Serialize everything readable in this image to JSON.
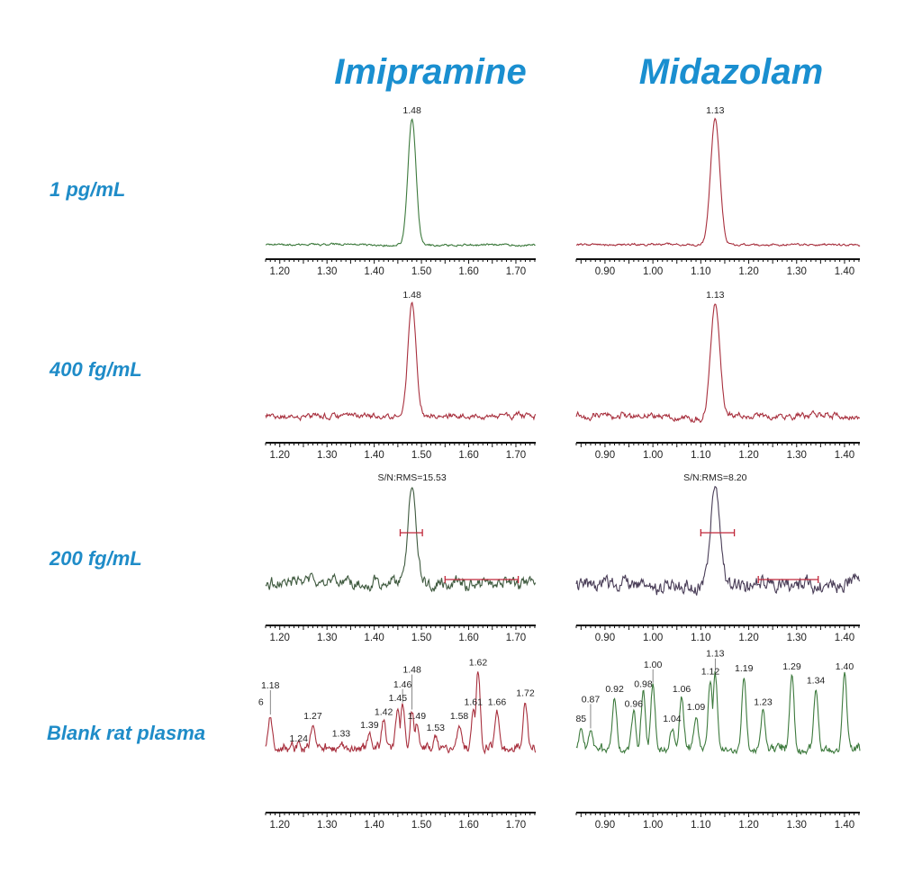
{
  "chart_data": {
    "type": "line",
    "title": "",
    "columns": [
      "Imipramine",
      "Midazolam"
    ],
    "rows": [
      "1 pg/mL",
      "400 fg/mL",
      "200 fg/mL",
      "Blank rat plasma"
    ],
    "xlabel": "",
    "ylabel": "",
    "panels": [
      {
        "compound": "Imipramine",
        "row": "1 pg/mL",
        "xlim": [
          1.17,
          1.742
        ],
        "ticks": [
          "1.20",
          "1.30",
          "1.40",
          "1.50",
          "1.60",
          "1.70"
        ],
        "color": "#3d7a3d",
        "peak": {
          "rt": 1.48,
          "label": "1.48",
          "intensity": 100
        },
        "noise": 2
      },
      {
        "compound": "Midazolam",
        "row": "1 pg/mL",
        "xlim": [
          0.84,
          1.432
        ],
        "ticks": [
          "0.90",
          "1.00",
          "1.10",
          "1.20",
          "1.30",
          "1.40"
        ],
        "color": "#a8303e",
        "peak": {
          "rt": 1.13,
          "label": "1.13",
          "intensity": 100
        },
        "noise": 2
      },
      {
        "compound": "Imipramine",
        "row": "400 fg/mL",
        "xlim": [
          1.17,
          1.742
        ],
        "ticks": [
          "1.20",
          "1.30",
          "1.40",
          "1.50",
          "1.60",
          "1.70"
        ],
        "color": "#a8303e",
        "peak": {
          "rt": 1.48,
          "label": "1.48",
          "intensity": 100
        },
        "noise": 5
      },
      {
        "compound": "Midazolam",
        "row": "400 fg/mL",
        "xlim": [
          0.84,
          1.432
        ],
        "ticks": [
          "0.90",
          "1.00",
          "1.10",
          "1.20",
          "1.30",
          "1.40"
        ],
        "color": "#a8303e",
        "peak": {
          "rt": 1.13,
          "label": "1.13",
          "intensity": 100
        },
        "noise": 6
      },
      {
        "compound": "Imipramine",
        "row": "200 fg/mL",
        "xlim": [
          1.17,
          1.742
        ],
        "ticks": [
          "1.20",
          "1.30",
          "1.40",
          "1.50",
          "1.60",
          "1.70"
        ],
        "color": "#3f5a3f",
        "peak": {
          "rt": 1.48,
          "label": "S/N:RMS=15.53",
          "intensity": 100
        },
        "noise": 11,
        "sn": {
          "value": 15.53,
          "fwhm": [
            1.455,
            1.502
          ],
          "noise_range": [
            1.55,
            1.705
          ]
        }
      },
      {
        "compound": "Midazolam",
        "row": "200 fg/mL",
        "xlim": [
          0.84,
          1.432
        ],
        "ticks": [
          "0.90",
          "1.00",
          "1.10",
          "1.20",
          "1.30",
          "1.40"
        ],
        "color": "#4a3e58",
        "peak": {
          "rt": 1.13,
          "label": "S/N:RMS=8.20",
          "intensity": 100
        },
        "noise": 14,
        "sn": {
          "value": 8.2,
          "fwhm": [
            1.1,
            1.17
          ],
          "noise_range": [
            1.22,
            1.345
          ]
        }
      },
      {
        "compound": "Imipramine",
        "row": "Blank rat plasma",
        "xlim": [
          1.17,
          1.742
        ],
        "ticks": [
          "1.20",
          "1.30",
          "1.40",
          "1.50",
          "1.60",
          "1.70"
        ],
        "color": "#a8303e",
        "blank": [
          {
            "rt": 1.16,
            "label": "6",
            "intensity": 55
          },
          {
            "rt": 1.18,
            "label": "1.18",
            "intensity": 50
          },
          {
            "rt": 1.24,
            "label": "1.24",
            "intensity": 18
          },
          {
            "rt": 1.27,
            "label": "1.27",
            "intensity": 41
          },
          {
            "rt": 1.33,
            "label": "1.33",
            "intensity": 23
          },
          {
            "rt": 1.39,
            "label": "1.39",
            "intensity": 32
          },
          {
            "rt": 1.42,
            "label": "1.42",
            "intensity": 45
          },
          {
            "rt": 1.45,
            "label": "1.45",
            "intensity": 59
          },
          {
            "rt": 1.46,
            "label": "1.46",
            "intensity": 62
          },
          {
            "rt": 1.48,
            "label": "1.48",
            "intensity": 55
          },
          {
            "rt": 1.49,
            "label": "1.49",
            "intensity": 41
          },
          {
            "rt": 1.53,
            "label": "1.53",
            "intensity": 29
          },
          {
            "rt": 1.58,
            "label": "1.58",
            "intensity": 41
          },
          {
            "rt": 1.61,
            "label": "1.61",
            "intensity": 55
          },
          {
            "rt": 1.62,
            "label": "1.62",
            "intensity": 95
          },
          {
            "rt": 1.66,
            "label": "1.66",
            "intensity": 55
          },
          {
            "rt": 1.72,
            "label": "1.72",
            "intensity": 64
          }
        ]
      },
      {
        "compound": "Midazolam",
        "row": "Blank rat plasma",
        "xlim": [
          0.84,
          1.432
        ],
        "ticks": [
          "0.90",
          "1.00",
          "1.10",
          "1.20",
          "1.30",
          "1.40"
        ],
        "color": "#3d7a3d",
        "blank": [
          {
            "rt": 0.85,
            "label": "85",
            "intensity": 38
          },
          {
            "rt": 0.87,
            "label": "0.87",
            "intensity": 36
          },
          {
            "rt": 0.92,
            "label": "0.92",
            "intensity": 68
          },
          {
            "rt": 0.96,
            "label": "0.96",
            "intensity": 53
          },
          {
            "rt": 0.98,
            "label": "0.98",
            "intensity": 73
          },
          {
            "rt": 1.0,
            "label": "1.00",
            "intensity": 82
          },
          {
            "rt": 1.04,
            "label": "1.04",
            "intensity": 38
          },
          {
            "rt": 1.06,
            "label": "1.06",
            "intensity": 68
          },
          {
            "rt": 1.09,
            "label": "1.09",
            "intensity": 50
          },
          {
            "rt": 1.12,
            "label": "1.12",
            "intensity": 86
          },
          {
            "rt": 1.13,
            "label": "1.13",
            "intensity": 93
          },
          {
            "rt": 1.19,
            "label": "1.19",
            "intensity": 89
          },
          {
            "rt": 1.23,
            "label": "1.23",
            "intensity": 55
          },
          {
            "rt": 1.29,
            "label": "1.29",
            "intensity": 91
          },
          {
            "rt": 1.34,
            "label": "1.34",
            "intensity": 77
          },
          {
            "rt": 1.4,
            "label": "1.40",
            "intensity": 91
          }
        ]
      }
    ]
  }
}
